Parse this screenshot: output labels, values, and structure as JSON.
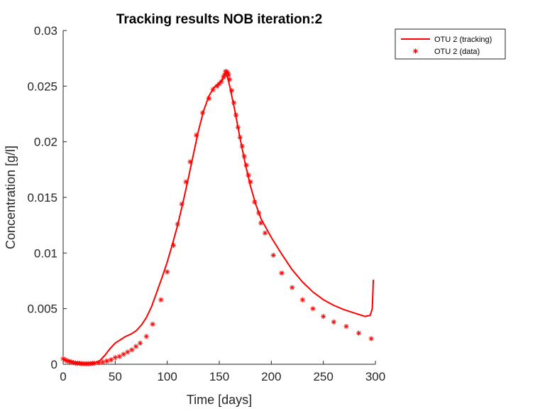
{
  "chart_data": {
    "type": "line",
    "title": "Tracking results NOB iteration:2",
    "xlabel": "Time [days]",
    "ylabel": "Concentration [g/l]",
    "xlim": [
      0,
      300
    ],
    "ylim": [
      0,
      0.03
    ],
    "xticks": [
      0,
      50,
      100,
      150,
      200,
      250,
      300
    ],
    "xtick_labels": [
      "0",
      "50",
      "100",
      "150",
      "200",
      "250",
      "300"
    ],
    "yticks": [
      0,
      0.005,
      0.01,
      0.015,
      0.02,
      0.025,
      0.03
    ],
    "ytick_labels": [
      "0",
      "0.005",
      "0.01",
      "0.015",
      "0.02",
      "0.025",
      "0.03"
    ],
    "grid": false,
    "legend_position": "top-right",
    "colors": {
      "series": "#ff0000",
      "axis": "#262626"
    },
    "series": [
      {
        "name": "OTU 2 (tracking)",
        "style": "line",
        "points": [
          [
            0,
            0.0004
          ],
          [
            3,
            0.00035
          ],
          [
            6,
            0.0003
          ],
          [
            10,
            0.0002
          ],
          [
            15,
            0.0001
          ],
          [
            20,
            5e-05
          ],
          [
            25,
            5e-05
          ],
          [
            30,
            0.0001
          ],
          [
            35,
            0.0003
          ],
          [
            40,
            0.0008
          ],
          [
            45,
            0.0014
          ],
          [
            50,
            0.0019
          ],
          [
            55,
            0.0022
          ],
          [
            60,
            0.0025
          ],
          [
            65,
            0.0027
          ],
          [
            70,
            0.003
          ],
          [
            75,
            0.0035
          ],
          [
            80,
            0.0042
          ],
          [
            85,
            0.0052
          ],
          [
            90,
            0.0065
          ],
          [
            95,
            0.0078
          ],
          [
            100,
            0.0092
          ],
          [
            105,
            0.0108
          ],
          [
            110,
            0.0125
          ],
          [
            115,
            0.0145
          ],
          [
            120,
            0.0166
          ],
          [
            125,
            0.0188
          ],
          [
            130,
            0.021
          ],
          [
            135,
            0.0228
          ],
          [
            140,
            0.0241
          ],
          [
            145,
            0.0249
          ],
          [
            150,
            0.0253
          ],
          [
            153,
            0.0256
          ],
          [
            156,
            0.0262
          ],
          [
            158,
            0.0258
          ],
          [
            160,
            0.025
          ],
          [
            165,
            0.0228
          ],
          [
            170,
            0.0203
          ],
          [
            175,
            0.018
          ],
          [
            180,
            0.016
          ],
          [
            185,
            0.0144
          ],
          [
            190,
            0.0131
          ],
          [
            200,
            0.0114
          ],
          [
            210,
            0.0099
          ],
          [
            220,
            0.0085
          ],
          [
            230,
            0.0074
          ],
          [
            240,
            0.0065
          ],
          [
            250,
            0.0058
          ],
          [
            260,
            0.0053
          ],
          [
            270,
            0.0049
          ],
          [
            280,
            0.0046
          ],
          [
            290,
            0.0043
          ],
          [
            295,
            0.0044
          ],
          [
            297,
            0.005
          ],
          [
            298,
            0.0076
          ]
        ]
      },
      {
        "name": "OTU 2 (data)",
        "style": "markers",
        "marker": "*",
        "points": [
          [
            0,
            0.0005
          ],
          [
            2,
            0.0004
          ],
          [
            4,
            0.0003
          ],
          [
            6,
            0.00025
          ],
          [
            8,
            0.0002
          ],
          [
            10,
            0.00015
          ],
          [
            12,
            0.0001
          ],
          [
            14,
            0.0001
          ],
          [
            16,
            8e-05
          ],
          [
            18,
            6e-05
          ],
          [
            20,
            5e-05
          ],
          [
            22,
            5e-05
          ],
          [
            24,
            5e-05
          ],
          [
            26,
            6e-05
          ],
          [
            28,
            8e-05
          ],
          [
            30,
            0.0001
          ],
          [
            34,
            0.00015
          ],
          [
            38,
            0.0002
          ],
          [
            42,
            0.0003
          ],
          [
            46,
            0.0004
          ],
          [
            50,
            0.0006
          ],
          [
            54,
            0.0007
          ],
          [
            58,
            0.0009
          ],
          [
            62,
            0.0011
          ],
          [
            66,
            0.0013
          ],
          [
            70,
            0.0016
          ],
          [
            74,
            0.0019
          ],
          [
            80,
            0.0025
          ],
          [
            86,
            0.0036
          ],
          [
            94,
            0.0058
          ],
          [
            100,
            0.0083
          ],
          [
            106,
            0.0107
          ],
          [
            110,
            0.0126
          ],
          [
            114,
            0.0144
          ],
          [
            118,
            0.0164
          ],
          [
            122,
            0.0182
          ],
          [
            128,
            0.0206
          ],
          [
            134,
            0.0226
          ],
          [
            140,
            0.0239
          ],
          [
            144,
            0.0247
          ],
          [
            148,
            0.025
          ],
          [
            150,
            0.0252
          ],
          [
            152,
            0.0254
          ],
          [
            154,
            0.0258
          ],
          [
            155,
            0.026
          ],
          [
            156,
            0.0263
          ],
          [
            157,
            0.0263
          ],
          [
            158,
            0.0262
          ],
          [
            159,
            0.026
          ],
          [
            160,
            0.0256
          ],
          [
            162,
            0.0246
          ],
          [
            164,
            0.0235
          ],
          [
            166,
            0.0224
          ],
          [
            168,
            0.0213
          ],
          [
            170,
            0.0204
          ],
          [
            172,
            0.0196
          ],
          [
            174,
            0.0187
          ],
          [
            176,
            0.0179
          ],
          [
            178,
            0.017
          ],
          [
            180,
            0.0164
          ],
          [
            184,
            0.0146
          ],
          [
            188,
            0.0136
          ],
          [
            190,
            0.0127
          ],
          [
            194,
            0.0118
          ],
          [
            202,
            0.0098
          ],
          [
            210,
            0.0082
          ],
          [
            220,
            0.0069
          ],
          [
            230,
            0.0058
          ],
          [
            240,
            0.005
          ],
          [
            250,
            0.0043
          ],
          [
            260,
            0.0038
          ],
          [
            272,
            0.0034
          ],
          [
            284,
            0.0028
          ],
          [
            296,
            0.0023
          ]
        ]
      }
    ]
  }
}
